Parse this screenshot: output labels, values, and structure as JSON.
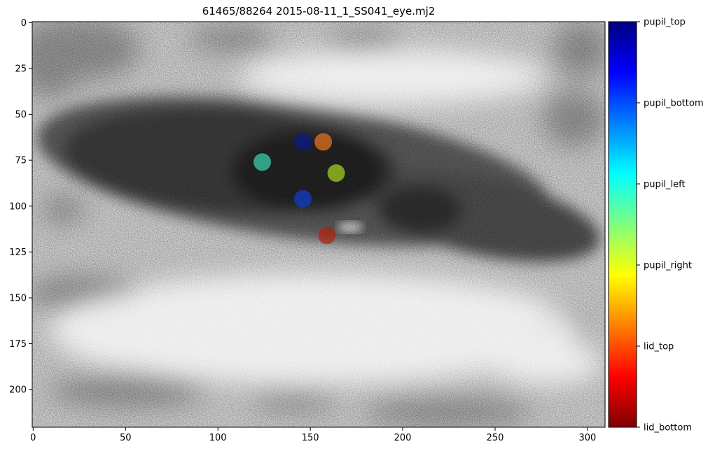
{
  "figure": {
    "title": "61465/88264 2015-08-11_1_SS041_eye.mj2"
  },
  "image_axes": {
    "xlim": [
      0,
      309
    ],
    "ylim": [
      220,
      0
    ],
    "xticks": [
      {
        "value": 0,
        "label": "0"
      },
      {
        "value": 50,
        "label": "50"
      },
      {
        "value": 100,
        "label": "100"
      },
      {
        "value": 150,
        "label": "150"
      },
      {
        "value": 200,
        "label": "200"
      },
      {
        "value": 250,
        "label": "250"
      },
      {
        "value": 300,
        "label": "300"
      }
    ],
    "yticks": [
      {
        "value": 0,
        "label": "0"
      },
      {
        "value": 25,
        "label": "25"
      },
      {
        "value": 50,
        "label": "50"
      },
      {
        "value": 75,
        "label": "75"
      },
      {
        "value": 100,
        "label": "100"
      },
      {
        "value": 125,
        "label": "125"
      },
      {
        "value": 150,
        "label": "150"
      },
      {
        "value": 175,
        "label": "175"
      },
      {
        "value": 200,
        "label": "200"
      }
    ]
  },
  "keypoints": [
    {
      "name": "pupil_top",
      "x": 146,
      "y": 65,
      "color": "#0a1a8c"
    },
    {
      "name": "pupil_bottom",
      "x": 146,
      "y": 96,
      "color": "#1040d0"
    },
    {
      "name": "pupil_left",
      "x": 124,
      "y": 76,
      "color": "#3ad8b0"
    },
    {
      "name": "pupil_right",
      "x": 164,
      "y": 82,
      "color": "#a8d820"
    },
    {
      "name": "lid_top",
      "x": 157,
      "y": 65,
      "color": "#f07820"
    },
    {
      "name": "lid_bottom",
      "x": 159,
      "y": 116,
      "color": "#b02010"
    }
  ],
  "colorbar": {
    "colormap": "jet",
    "labels": [
      "pupil_top",
      "pupil_bottom",
      "pupil_left",
      "pupil_right",
      "lid_top",
      "lid_bottom"
    ],
    "colors_top_to_bottom": [
      "#00007f",
      "#0000ff",
      "#007fff",
      "#00ffff",
      "#7fff7f",
      "#ffff00",
      "#ff7f00",
      "#ff0000",
      "#7f0000"
    ]
  }
}
